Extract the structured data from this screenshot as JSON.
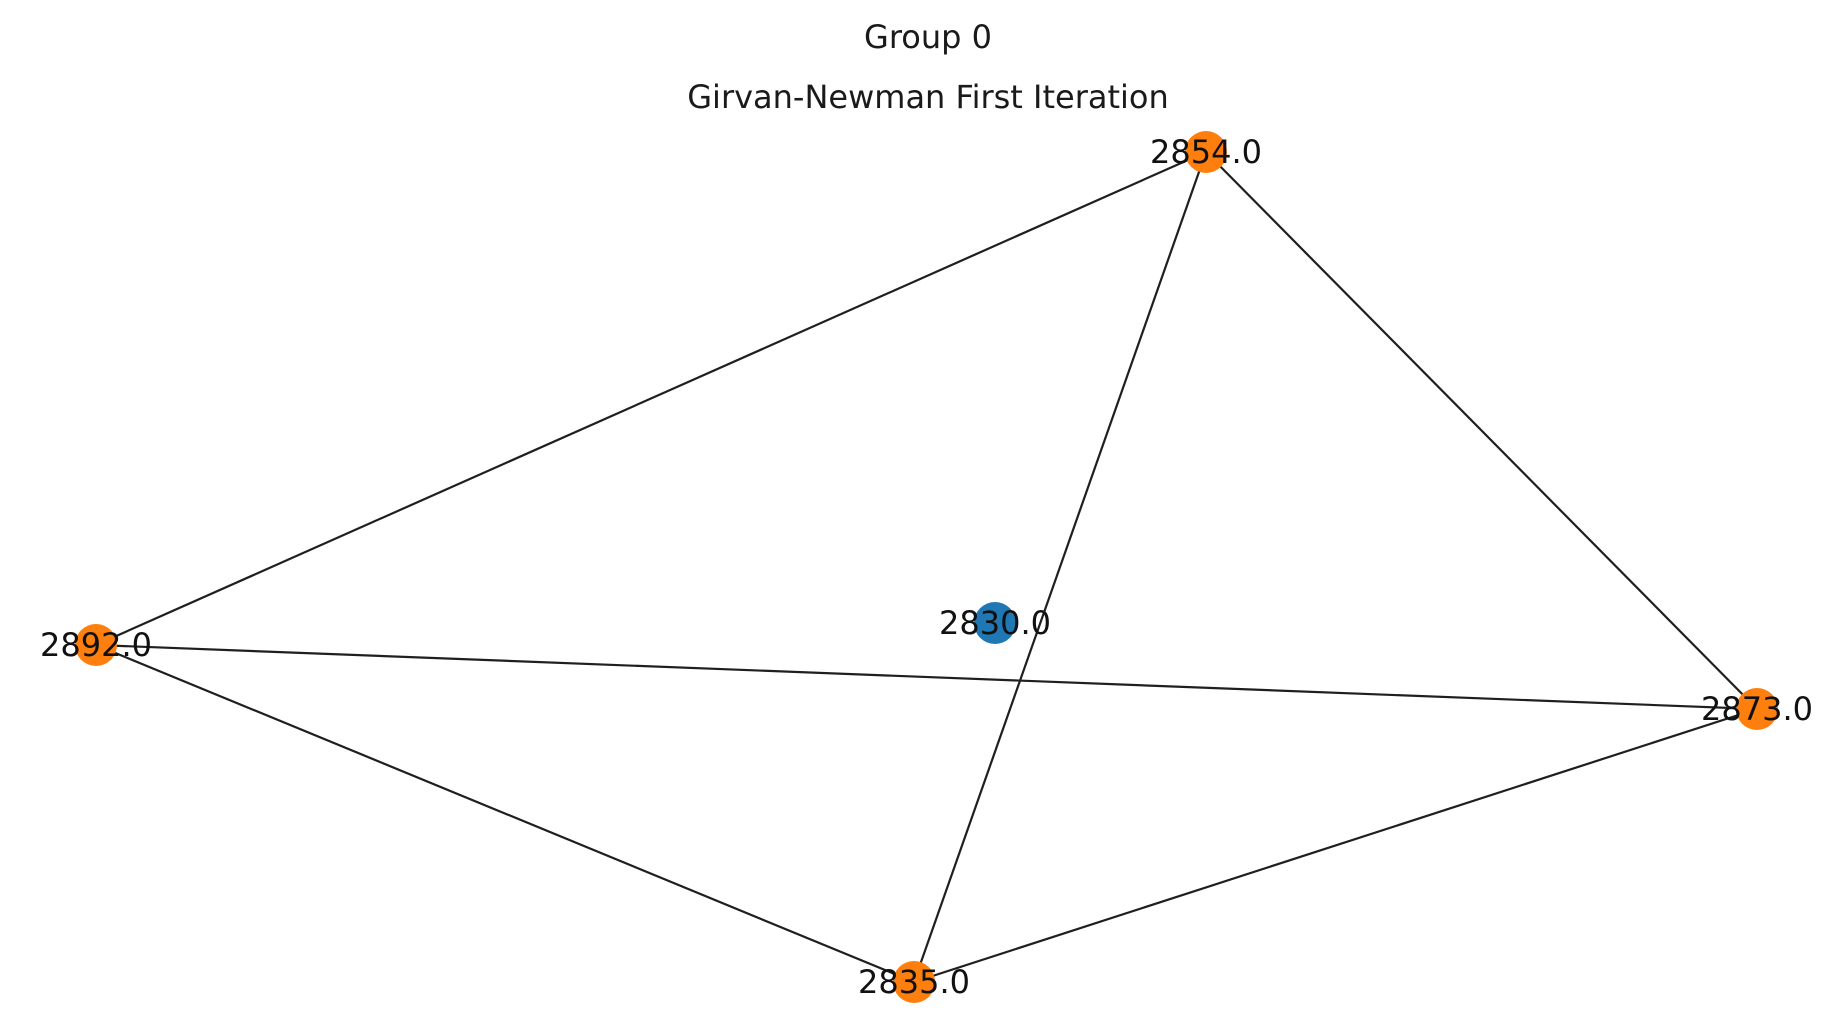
{
  "figure": {
    "suptitle": "Group 0",
    "title": "Girvan-Newman First Iteration"
  },
  "graph": {
    "colors": {
      "community_a": "#ff7f0e",
      "community_b": "#1f77b4",
      "edge": "#1f1f1f"
    },
    "nodes": [
      {
        "id": "2854.0",
        "label": "2854.0",
        "community": "community_a"
      },
      {
        "id": "2892.0",
        "label": "2892.0",
        "community": "community_a"
      },
      {
        "id": "2873.0",
        "label": "2873.0",
        "community": "community_a"
      },
      {
        "id": "2835.0",
        "label": "2835.0",
        "community": "community_a"
      },
      {
        "id": "2830.0",
        "label": "2830.0",
        "community": "community_b"
      }
    ],
    "edges": [
      [
        "2854.0",
        "2892.0"
      ],
      [
        "2854.0",
        "2835.0"
      ],
      [
        "2854.0",
        "2873.0"
      ],
      [
        "2892.0",
        "2873.0"
      ],
      [
        "2892.0",
        "2835.0"
      ],
      [
        "2835.0",
        "2873.0"
      ]
    ]
  }
}
